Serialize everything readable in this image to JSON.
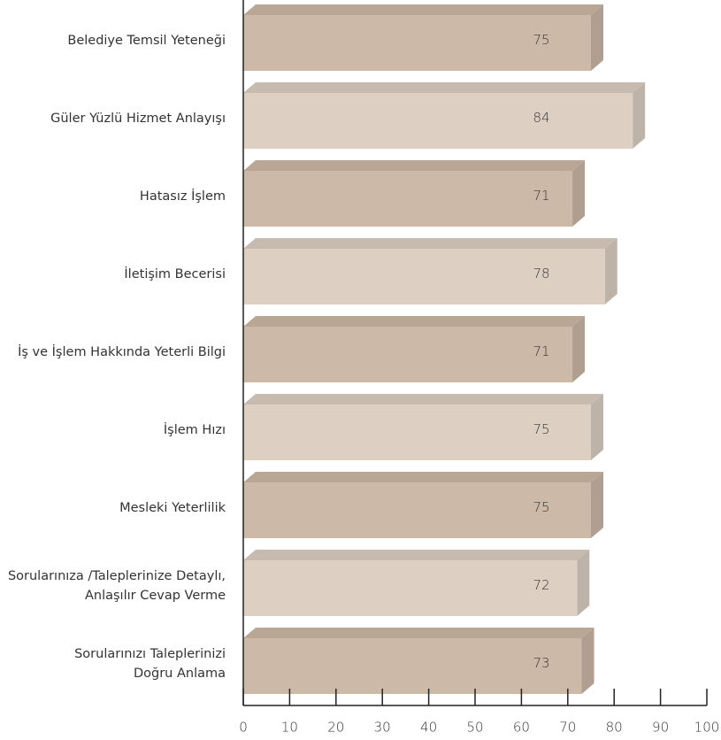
{
  "chart_data": {
    "type": "bar3d",
    "categories": [
      "Belediye Temsil Yeteneği",
      "Güler Yüzlü Hizmet Anlayışı",
      "Hatasız İşlem",
      "İletişim Becerisi",
      "İş ve İşlem Hakkında Yeterli Bilgi",
      "İşlem Hızı",
      "Mesleki Yeterlilik",
      "Sorularınıza /Taleplerinize Detaylı,\nAnlaşılır Cevap Verme",
      "Sorularınızı Taleplerinizi\nDoğru Anlama"
    ],
    "values": [
      75,
      84,
      71,
      78,
      71,
      75,
      75,
      72,
      73
    ],
    "colors": [
      "#cdb9a7",
      "#ddd0c3",
      "#cdb9a7",
      "#ddd0c3",
      "#cdb9a7",
      "#ddd0c3",
      "#cdb9a7",
      "#ddd0c3",
      "#cdb9a7"
    ],
    "xlim": [
      0,
      100
    ],
    "xticks": [
      0,
      10,
      20,
      30,
      40,
      50,
      60,
      70,
      80,
      90,
      100
    ]
  }
}
